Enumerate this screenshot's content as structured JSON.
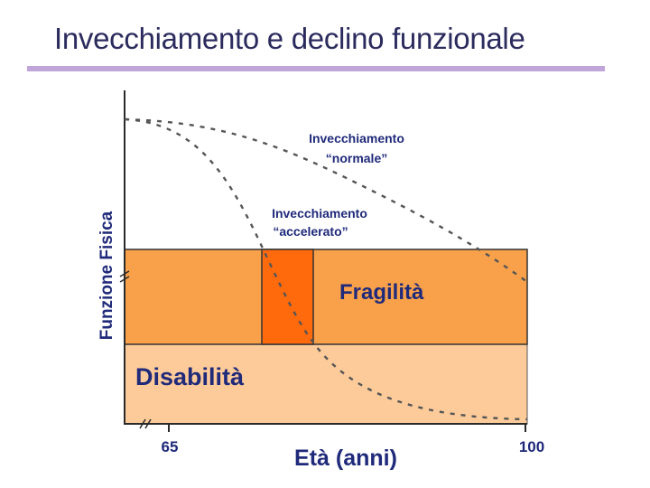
{
  "slide": {
    "title": "Invecchiamento e declino funzionale"
  },
  "chart_data": {
    "type": "line",
    "title": "Invecchiamento e declino funzionale",
    "xlabel": "Età (anni)",
    "ylabel": "Funzione Fisica",
    "x_ticks": [
      "65",
      "100"
    ],
    "zones": [
      {
        "name": "Disabilità",
        "color": "#fdcb9a"
      },
      {
        "name": "Fragilità",
        "color": "#f8a14a"
      },
      {
        "name": "",
        "color": "#ff6a0d"
      }
    ],
    "series": [
      {
        "name": "Invecchiamento “normale”",
        "line_name": "Invecchiamento",
        "quote_name": "“normale”",
        "style": "dashed"
      },
      {
        "name": "Invecchiamento “accelerato”",
        "line_name": "Invecchiamento",
        "quote_name": "“accelerato”",
        "style": "dashed"
      }
    ],
    "grid": false,
    "legend": "none"
  },
  "colors": {
    "title": "#2b2b5e",
    "title_rule": "#c0a6d8",
    "text": "#1f2a7a",
    "axis": "#2a2a2a",
    "dash": "#555555"
  }
}
